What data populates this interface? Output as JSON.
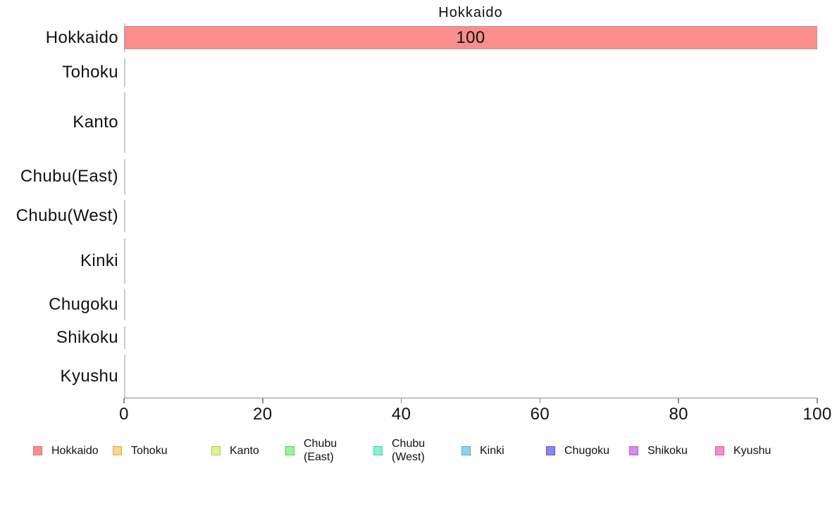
{
  "chart_data": {
    "type": "bar",
    "orientation": "horizontal",
    "title": "Hokkaido",
    "xlabel": "",
    "ylabel": "",
    "xlim": [
      0,
      100
    ],
    "x_ticks": [
      0,
      20,
      40,
      60,
      80,
      100
    ],
    "grid": false,
    "legend_position": "bottom",
    "categories": [
      "Hokkaido",
      "Tohoku",
      "Kanto",
      "Chubu(East)",
      "Chubu(West)",
      "Kinki",
      "Chugoku",
      "Shikoku",
      "Kyushu"
    ],
    "values": [
      100,
      0,
      0,
      0,
      0,
      0,
      0,
      0,
      0
    ],
    "series": [
      {
        "name": "Hokkaido",
        "axis_label": "Hokkaido",
        "legend_lines": [
          "Hokkaido"
        ],
        "value": 100,
        "bar_label": "100",
        "fill": "#FB8D8D",
        "legend_border": "#D06A6A"
      },
      {
        "name": "Tohoku",
        "axis_label": "Tohoku",
        "legend_lines": [
          "Tohoku"
        ],
        "value": 0,
        "bar_label": "",
        "fill": "#FBD392",
        "legend_border": "#D9A74E"
      },
      {
        "name": "Kanto",
        "axis_label": "Kanto",
        "legend_lines": [
          "Kanto"
        ],
        "value": 0,
        "bar_label": "",
        "fill": "#DAF78F",
        "legend_border": "#ABCB55"
      },
      {
        "name": "Chubu(East)",
        "axis_label": "Chubu(East)",
        "legend_lines": [
          "Chubu",
          "(East)"
        ],
        "value": 0,
        "bar_label": "",
        "fill": "#95F995",
        "legend_border": "#5CC75E"
      },
      {
        "name": "Chubu(West)",
        "axis_label": "Chubu(West)",
        "legend_lines": [
          "Chubu",
          "(West)"
        ],
        "value": 0,
        "bar_label": "",
        "fill": "#7EF6D0",
        "legend_border": "#4EC7A6"
      },
      {
        "name": "Kinki",
        "axis_label": "Kinki",
        "legend_lines": [
          "Kinki"
        ],
        "value": 0,
        "bar_label": "",
        "fill": "#8ED2F8",
        "legend_border": "#5CA4CD"
      },
      {
        "name": "Chugoku",
        "axis_label": "Chugoku",
        "legend_lines": [
          "Chugoku"
        ],
        "value": 0,
        "bar_label": "",
        "fill": "#8787F0",
        "legend_border": "#5B5BC6"
      },
      {
        "name": "Shikoku",
        "axis_label": "Shikoku",
        "legend_lines": [
          "Shikoku"
        ],
        "value": 0,
        "bar_label": "",
        "fill": "#D78BF7",
        "legend_border": "#A95FC9"
      },
      {
        "name": "Kyushu",
        "axis_label": "Kyushu",
        "legend_lines": [
          "Kyushu"
        ],
        "value": 0,
        "bar_label": "",
        "fill": "#F98BCF",
        "legend_border": "#C95FA2"
      }
    ],
    "bar_border_color": "#BB9A9C",
    "colors": {
      "axis_line": "#8C8C8C",
      "y_tick_segment": "#CBCBCB",
      "text": "#111111",
      "background": "#FFFFFF"
    },
    "row_heights_relative": [
      41,
      40,
      86,
      50,
      46,
      64,
      44,
      32,
      61
    ]
  }
}
